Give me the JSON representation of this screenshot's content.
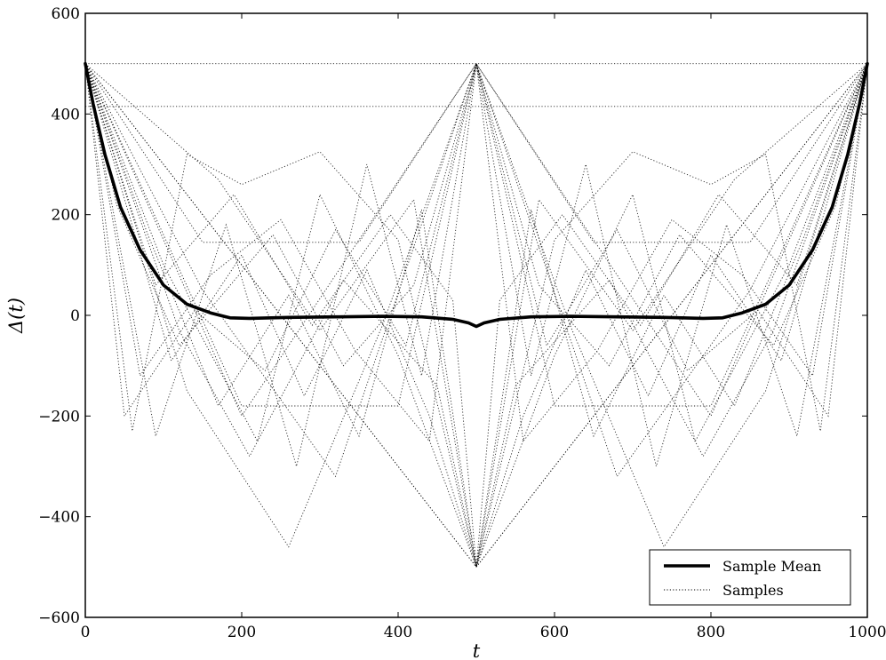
{
  "chart_data": {
    "type": "line",
    "title": "",
    "xlabel": "t",
    "ylabel": "Δ(t)",
    "xlim": [
      0,
      1000
    ],
    "ylim": [
      -600,
      600
    ],
    "grid": false,
    "legend_position": "bottom-right",
    "x_ticks": [
      "0",
      "200",
      "400",
      "600",
      "800",
      "1000"
    ],
    "y_ticks": [
      "−600",
      "−400",
      "−200",
      "0",
      "200",
      "400",
      "600"
    ],
    "legend": [
      "Sample Mean",
      "Samples"
    ],
    "series": [
      {
        "name": "Sample Mean",
        "style": "solid-thick",
        "x": [
          0,
          10,
          25,
          45,
          70,
          100,
          130,
          160,
          185,
          210,
          260,
          320,
          380,
          430,
          470,
          490,
          500,
          510,
          530,
          570,
          620,
          680,
          740,
          790,
          815,
          840,
          870,
          900,
          930,
          955,
          975,
          990,
          1000
        ],
        "y": [
          500,
          420,
          320,
          215,
          130,
          60,
          22,
          5,
          -5,
          -6,
          -4,
          -3,
          -2,
          -3,
          -8,
          -15,
          -22,
          -15,
          -8,
          -3,
          -2,
          -3,
          -4,
          -6,
          -5,
          5,
          22,
          60,
          130,
          215,
          320,
          420,
          500
        ]
      },
      {
        "name": "Samples",
        "style": "dotted",
        "description_values": [
          {
            "x": [
              0,
              500,
              1000
            ],
            "y": [
              500,
              -500,
              500
            ]
          },
          {
            "x": [
              0,
              500,
              1000
            ],
            "y": [
              500,
              500,
              500
            ]
          },
          {
            "x": [
              0,
              1000
            ],
            "y": [
              415,
              415
            ]
          },
          {
            "x": [
              0,
              250,
              500,
              750,
              1000
            ],
            "y": [
              500,
              0,
              -500,
              0,
              500
            ]
          },
          {
            "x": [
              0,
              200,
              500,
              800,
              1000
            ],
            "y": [
              500,
              -200,
              500,
              -200,
              500
            ]
          },
          {
            "x": [
              0,
              130,
              260,
              380,
              500,
              620,
              740,
              870,
              1000
            ],
            "y": [
              500,
              -150,
              -460,
              -20,
              500,
              -20,
              -460,
              -150,
              500
            ]
          },
          {
            "x": [
              0,
              60,
              130,
              200,
              300,
              400,
              500,
              600,
              700,
              800,
              870,
              940,
              1000
            ],
            "y": [
              500,
              -230,
              320,
              260,
              325,
              150,
              -500,
              150,
              325,
              260,
              320,
              -230,
              500
            ]
          },
          {
            "x": [
              0,
              90,
              180,
              270,
              360,
              430,
              500,
              570,
              640,
              730,
              820,
              910,
              1000
            ],
            "y": [
              500,
              -240,
              180,
              -300,
              300,
              -120,
              500,
              -120,
              300,
              -300,
              180,
              -240,
              500
            ]
          },
          {
            "x": [
              0,
              100,
              220,
              300,
              400,
              500,
              600,
              700,
              780,
              900,
              1000
            ],
            "y": [
              500,
              100,
              -250,
              240,
              -80,
              -500,
              -80,
              240,
              -250,
              100,
              500
            ]
          },
          {
            "x": [
              0,
              150,
              320,
              500,
              680,
              850,
              1000
            ],
            "y": [
              500,
              50,
              -320,
              500,
              -320,
              50,
              500
            ]
          },
          {
            "x": [
              0,
              80,
              170,
              260,
              350,
              430,
              500,
              570,
              650,
              740,
              830,
              920,
              1000
            ],
            "y": [
              500,
              160,
              -180,
              40,
              -240,
              210,
              -500,
              210,
              -240,
              40,
              -180,
              160,
              500
            ]
          },
          {
            "x": [
              0,
              40,
              120,
              240,
              330,
              420,
              500,
              580,
              670,
              760,
              880,
              960,
              1000
            ],
            "y": [
              500,
              220,
              -60,
              160,
              -100,
              60,
              500,
              60,
              -100,
              160,
              -60,
              220,
              500
            ]
          },
          {
            "x": [
              0,
              110,
              200,
              280,
              360,
              440,
              500,
              560,
              640,
              720,
              800,
              890,
              1000
            ],
            "y": [
              500,
              -90,
              120,
              -160,
              90,
              -200,
              -500,
              -200,
              90,
              -160,
              120,
              -90,
              500
            ]
          },
          {
            "x": [
              0,
              150,
              250,
              350,
              500,
              650,
              750,
              850,
              1000
            ],
            "y": [
              500,
              145,
              145,
              145,
              500,
              145,
              145,
              145,
              500
            ]
          },
          {
            "x": [
              0,
              170,
              300,
              420,
              500,
              580,
              700,
              830,
              1000
            ],
            "y": [
              500,
              270,
              -30,
              230,
              -500,
              230,
              -30,
              270,
              500
            ]
          },
          {
            "x": [
              0,
              50,
              140,
              230,
              320,
              410,
              500,
              590,
              680,
              770,
              860,
              950,
              1000
            ],
            "y": [
              500,
              -200,
              10,
              -110,
              170,
              -60,
              500,
              -60,
              170,
              -110,
              10,
              -200,
              500
            ]
          },
          {
            "x": [
              0,
              120,
              210,
              330,
              450,
              500,
              550,
              670,
              790,
              880,
              1000
            ],
            "y": [
              500,
              -30,
              -280,
              70,
              -140,
              -500,
              -140,
              70,
              -280,
              -30,
              500
            ]
          },
          {
            "x": [
              0,
              200,
              300,
              400,
              500,
              600,
              700,
              800,
              1000
            ],
            "y": [
              500,
              -180,
              -180,
              -180,
              500,
              -180,
              -180,
              -180,
              500
            ]
          },
          {
            "x": [
              0,
              90,
              190,
              290,
              390,
              470,
              500,
              530,
              610,
              710,
              810,
              910,
              1000
            ],
            "y": [
              500,
              60,
              240,
              -20,
              200,
              30,
              -500,
              30,
              200,
              -20,
              240,
              60,
              500
            ]
          },
          {
            "x": [
              0,
              70,
              160,
              250,
              345,
              440,
              500,
              560,
              655,
              750,
              840,
              930,
              1000
            ],
            "y": [
              500,
              -120,
              80,
              190,
              -70,
              -250,
              500,
              -250,
              -70,
              190,
              80,
              -120,
              500
            ]
          }
        ]
      }
    ]
  }
}
